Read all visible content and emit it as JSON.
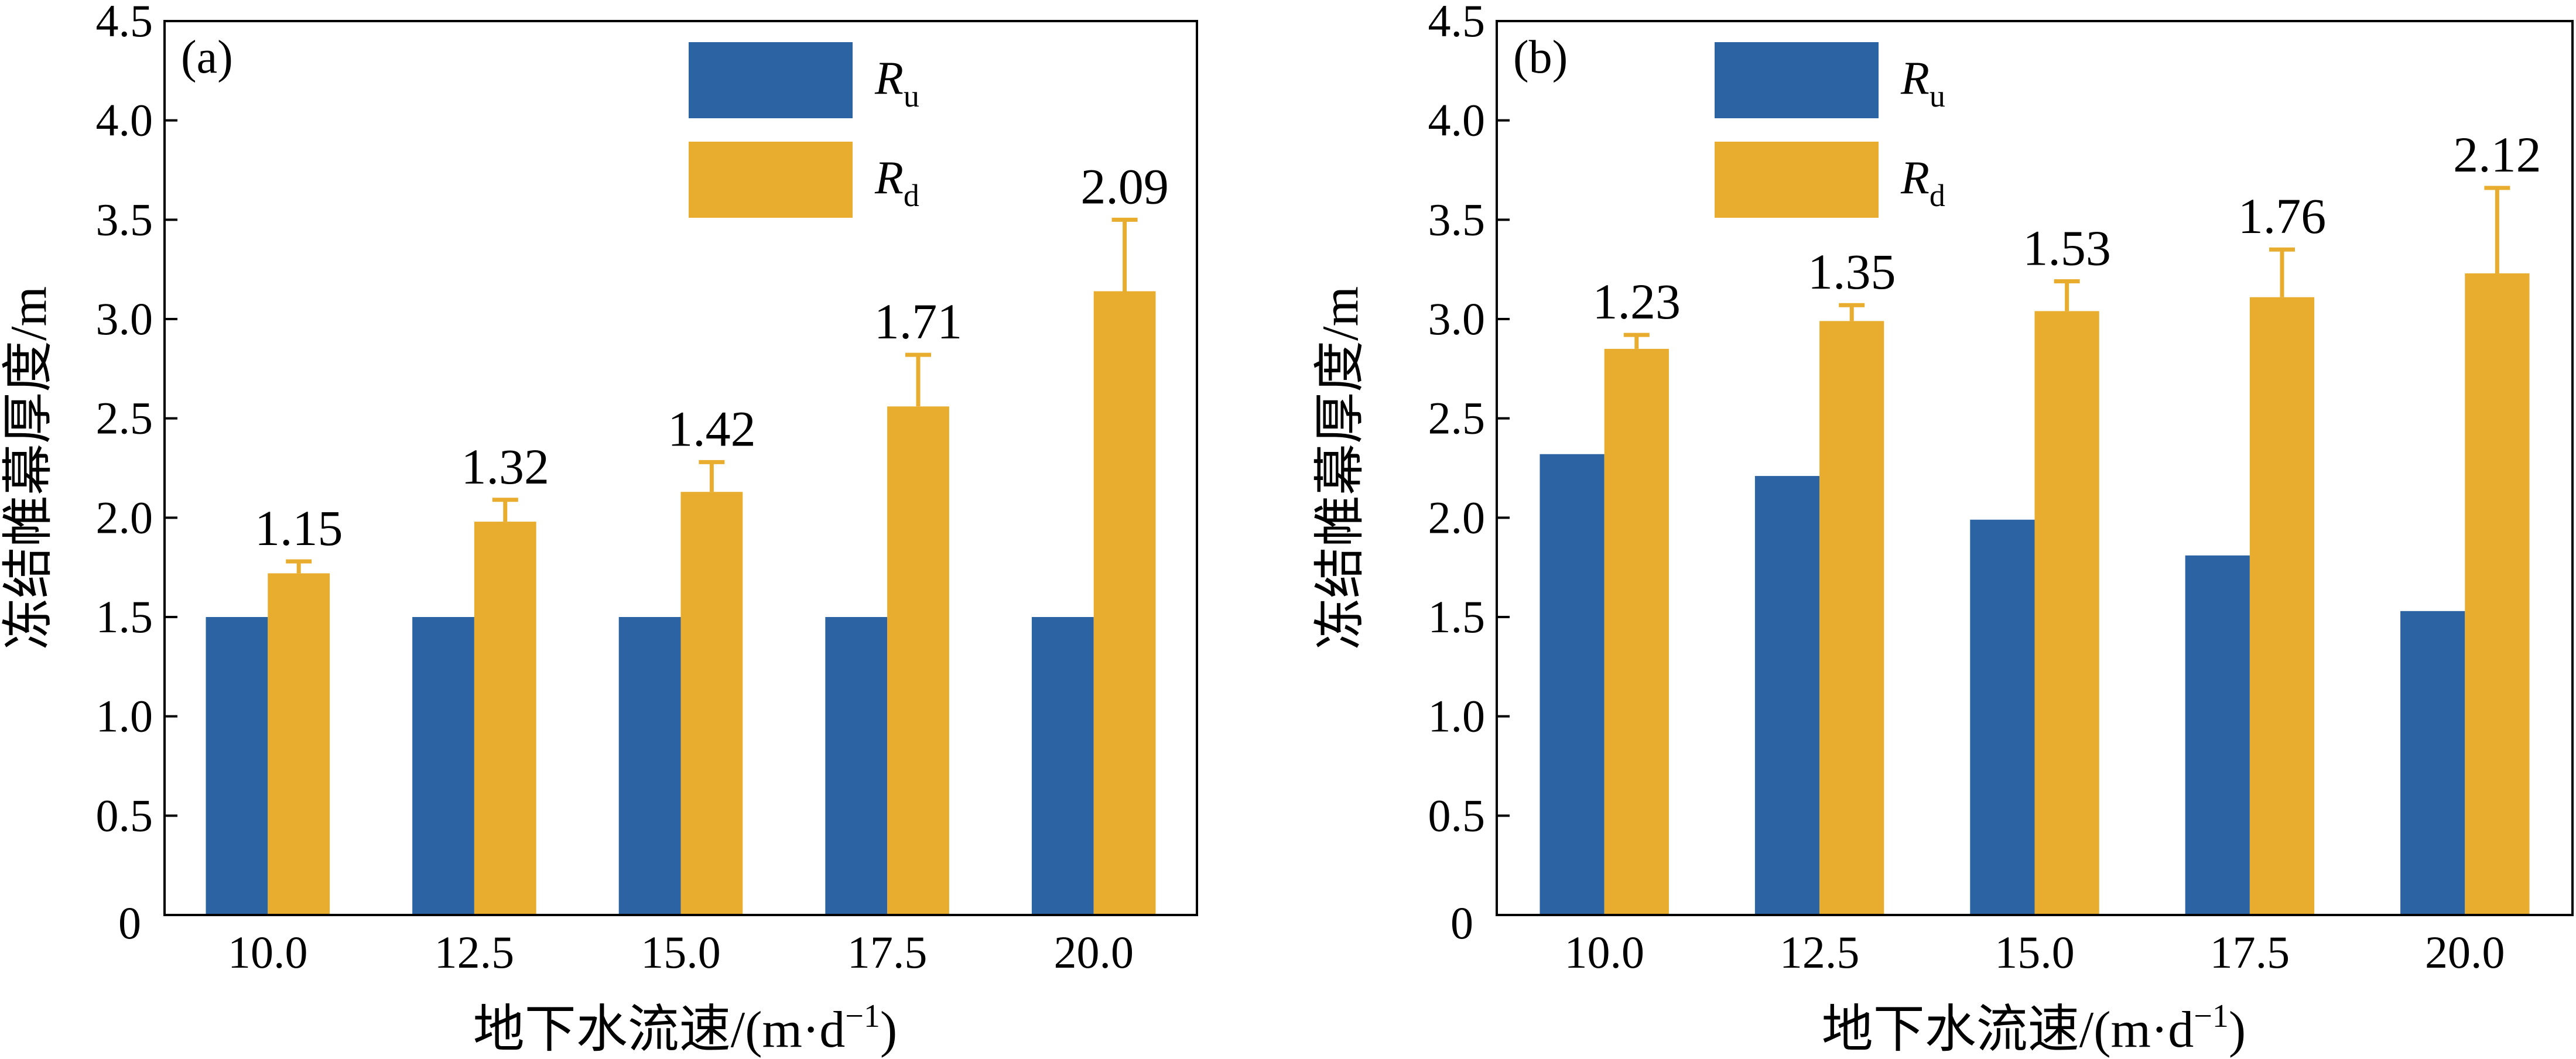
{
  "chart_data": [
    {
      "type": "bar",
      "panel_label": "(a)",
      "categories": [
        "10.0",
        "12.5",
        "15.0",
        "17.5",
        "20.0"
      ],
      "series": [
        {
          "name": "R",
          "subscript": "u",
          "values": [
            1.5,
            1.5,
            1.5,
            1.5,
            1.5
          ],
          "color": "#2c64a3"
        },
        {
          "name": "R",
          "subscript": "d",
          "values": [
            1.72,
            1.98,
            2.13,
            2.56,
            3.14
          ],
          "errors": [
            0.06,
            0.11,
            0.15,
            0.26,
            0.36
          ],
          "color": "#e8ad2f"
        }
      ],
      "data_labels": [
        "1.15",
        "1.32",
        "1.42",
        "1.71",
        "2.09"
      ],
      "ylim": [
        0,
        4.5
      ],
      "yticks": [
        "0",
        "0.5",
        "1.0",
        "1.5",
        "2.0",
        "2.5",
        "3.0",
        "3.5",
        "4.0",
        "4.5"
      ],
      "xlabel": "地下水流速/(m·d",
      "xlabel_sup": "−1",
      "xlabel_end": ")",
      "ylabel": "冻结帷幕厚度/m",
      "legend_position": "top-center"
    },
    {
      "type": "bar",
      "panel_label": "(b)",
      "categories": [
        "10.0",
        "12.5",
        "15.0",
        "17.5",
        "20.0"
      ],
      "series": [
        {
          "name": "R",
          "subscript": "u",
          "values": [
            2.32,
            2.21,
            1.99,
            1.81,
            1.53
          ],
          "color": "#2c64a3"
        },
        {
          "name": "R",
          "subscript": "d",
          "values": [
            2.85,
            2.99,
            3.04,
            3.11,
            3.23
          ],
          "errors": [
            0.07,
            0.08,
            0.15,
            0.24,
            0.43
          ],
          "color": "#e8ad2f"
        }
      ],
      "data_labels": [
        "1.23",
        "1.35",
        "1.53",
        "1.76",
        "2.12"
      ],
      "ylim": [
        0,
        4.5
      ],
      "yticks": [
        "0",
        "0.5",
        "1.0",
        "1.5",
        "2.0",
        "2.5",
        "3.0",
        "3.5",
        "4.0",
        "4.5"
      ],
      "xlabel": "地下水流速/(m·d",
      "xlabel_sup": "−1",
      "xlabel_end": ")",
      "ylabel": "冻结帷幕厚度/m",
      "legend_position": "top-center"
    }
  ]
}
